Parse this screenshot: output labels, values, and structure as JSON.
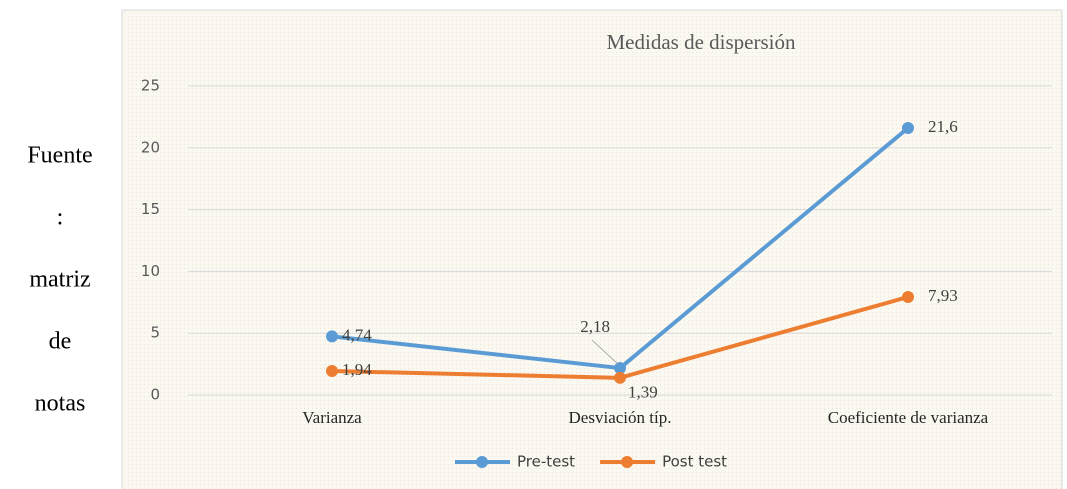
{
  "side_text": [
    "Fuente",
    ":",
    "matriz",
    "de",
    "notas"
  ],
  "chart_data": {
    "type": "line",
    "title": "Medidas de dispersión",
    "categories": [
      "Varianza",
      "Desviación típ.",
      "Coeficiente de varianza"
    ],
    "series": [
      {
        "name": "Pre-test",
        "color": "#5b9bd5",
        "values": [
          4.74,
          2.18,
          21.6
        ],
        "value_labels": [
          "4,74",
          "2,18",
          "21,6"
        ]
      },
      {
        "name": "Post test",
        "color": "#ed7d31",
        "values": [
          1.94,
          1.39,
          7.93
        ],
        "value_labels": [
          "1,94",
          "1,39",
          "7,93"
        ]
      }
    ],
    "ylim": [
      0,
      25
    ],
    "yticks": [
      0,
      5,
      10,
      15,
      20,
      25
    ],
    "grid": true,
    "legend": "bottom"
  }
}
